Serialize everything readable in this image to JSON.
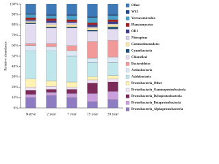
{
  "chart_data": {
    "type": "stacked_bar",
    "y_label": "Relative abundance",
    "categories": [
      "Native",
      "2 year",
      "7 year",
      "19 year",
      "39 year"
    ],
    "ylim": [
      0,
      100
    ],
    "yticks": [
      {
        "value": 0,
        "label": "0%"
      },
      {
        "value": 10,
        "label": "10%"
      },
      {
        "value": 20,
        "label": "20%"
      },
      {
        "value": 30,
        "label": "30%"
      },
      {
        "value": 40,
        "label": "40%"
      },
      {
        "value": 50,
        "label": "50%"
      },
      {
        "value": 60,
        "label": "60%"
      },
      {
        "value": 70,
        "label": "70%"
      },
      {
        "value": 80,
        "label": "80%"
      },
      {
        "value": 90,
        "label": "90%"
      },
      {
        "value": 100,
        "label": "100%"
      }
    ],
    "series": [
      {
        "name": "Proteobacteria_Alphaproteobacteria",
        "color": "#8e7cc3",
        "values": [
          10,
          12,
          10,
          6,
          8
        ]
      },
      {
        "name": "Proteobacteria_Betaproteobacteria",
        "color": "#c9a0dc",
        "values": [
          3,
          3,
          4,
          8,
          8
        ]
      },
      {
        "name": "Proteobacteria_Deltaproteobacteria",
        "color": "#7b2a5a",
        "values": [
          4,
          3,
          4,
          10,
          9
        ]
      },
      {
        "name": "Proteobacteria_Gammaproteobacteria",
        "color": "#efe3f5",
        "values": [
          3,
          3,
          2,
          3,
          3
        ]
      },
      {
        "name": "Proteobacteria_Other",
        "color": "#fff2b3",
        "values": [
          8,
          5,
          5,
          3,
          3
        ]
      },
      {
        "name": "Acidobacteria",
        "color": "#bfe6ea",
        "values": [
          27,
          29,
          25,
          14,
          13
        ]
      },
      {
        "name": "Actinobacteria",
        "color": "#dbe8f6",
        "values": [
          5,
          4,
          5,
          4,
          5
        ]
      },
      {
        "name": "Bacteroidetes",
        "color": "#f29a9a",
        "values": [
          2,
          3,
          5,
          16,
          16
        ]
      },
      {
        "name": "Chloroflexi",
        "color": "#e3dbf0",
        "values": [
          19,
          15,
          17,
          10,
          11
        ]
      },
      {
        "name": "Cyanobacteria",
        "color": "#1f4e79",
        "values": [
          1,
          1,
          1,
          1,
          2
        ]
      },
      {
        "name": "Gemmatimonadetes",
        "color": "#fde9a9",
        "values": [
          1,
          2,
          2,
          2,
          2
        ]
      },
      {
        "name": "Nitrospirae",
        "color": "#d4cfe6",
        "values": [
          1,
          2,
          2,
          1,
          1
        ]
      },
      {
        "name": "OD1",
        "color": "#3b3b8f",
        "values": [
          1,
          2,
          1,
          2,
          2
        ]
      },
      {
        "name": "Planctomycetes",
        "color": "#a32020",
        "values": [
          2,
          2,
          2,
          2,
          2
        ]
      },
      {
        "name": "Verrucomicrobia",
        "color": "#4aa0c8",
        "values": [
          3,
          3,
          4,
          5,
          4
        ]
      },
      {
        "name": "WS3",
        "color": "#204a87",
        "values": [
          1,
          1,
          1,
          1,
          1
        ]
      },
      {
        "name": "Other",
        "color": "#3e7ab8",
        "values": [
          9,
          10,
          10,
          12,
          10
        ]
      }
    ]
  }
}
